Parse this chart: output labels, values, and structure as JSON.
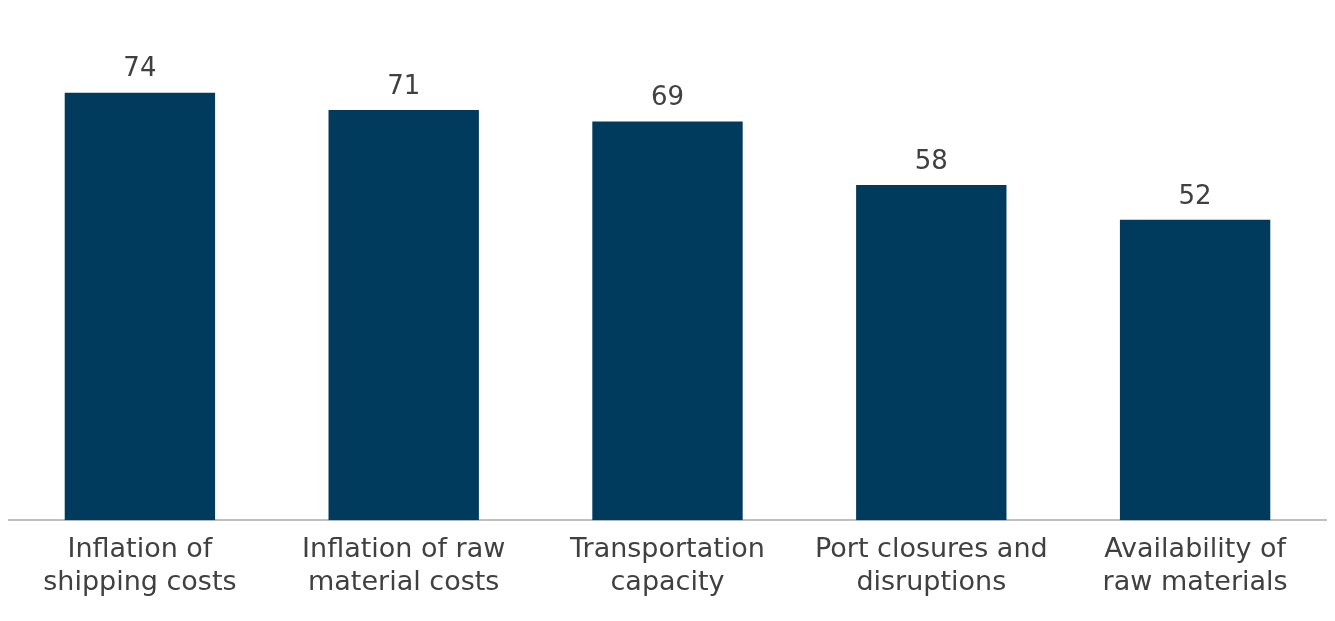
{
  "chart_data": {
    "type": "bar",
    "categories": [
      "Inflation of shipping costs",
      "Inflation of raw material costs",
      "Transportation capacity",
      "Port closures and disruptions",
      "Availability of raw materials"
    ],
    "values": [
      74,
      71,
      69,
      58,
      52
    ],
    "color": "#003a5d",
    "data_labels": true,
    "grid": false,
    "legend": false
  }
}
